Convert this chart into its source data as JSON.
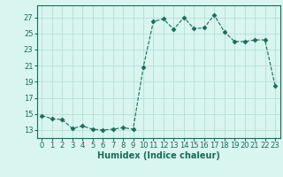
{
  "x": [
    0,
    1,
    2,
    3,
    4,
    5,
    6,
    7,
    8,
    9,
    10,
    11,
    12,
    13,
    14,
    15,
    16,
    17,
    18,
    19,
    20,
    21,
    22,
    23
  ],
  "y": [
    14.8,
    14.4,
    14.3,
    13.2,
    13.5,
    13.1,
    13.0,
    13.1,
    13.3,
    13.1,
    20.8,
    26.5,
    26.8,
    25.5,
    27.0,
    25.6,
    25.7,
    27.3,
    25.2,
    24.0,
    24.0,
    24.2,
    24.2,
    18.5
  ],
  "line_color": "#1a6b5a",
  "marker": "D",
  "marker_size": 2.5,
  "bg_color": "#d8f5f0",
  "grid_color": "#b8ddd8",
  "xlabel": "Humidex (Indice chaleur)",
  "xlim": [
    -0.5,
    23.5
  ],
  "ylim": [
    12,
    28.5
  ],
  "yticks": [
    13,
    15,
    17,
    19,
    21,
    23,
    25,
    27
  ],
  "xticks": [
    0,
    1,
    2,
    3,
    4,
    5,
    6,
    7,
    8,
    9,
    10,
    11,
    12,
    13,
    14,
    15,
    16,
    17,
    18,
    19,
    20,
    21,
    22,
    23
  ],
  "tick_color": "#1a6b5a",
  "label_fontsize": 7,
  "tick_fontsize": 6
}
